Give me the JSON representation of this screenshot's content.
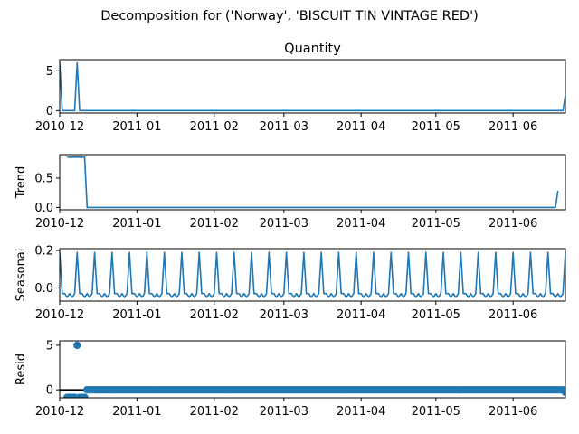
{
  "chart_data": {
    "type": "line",
    "suptitle": "Decomposition for ('Norway', 'BISCUIT TIN VINTAGE RED')",
    "x_tick_labels": [
      "2010-12",
      "2011-01",
      "2011-02",
      "2011-03",
      "2011-04",
      "2011-05",
      "2011-06"
    ],
    "x_tick_days": [
      0,
      31,
      62,
      90,
      121,
      151,
      182
    ],
    "x_range_days": [
      0,
      203
    ],
    "colors": {
      "series": "#1f77b4",
      "axis": "#000000",
      "zero_line": "#000000"
    },
    "panels": [
      {
        "key": "quantity",
        "title": "Quantity",
        "ylabel": "",
        "kind": "line",
        "ylim": [
          -0.3,
          6.4
        ],
        "yticks": [
          0,
          5
        ],
        "ytick_labels": [
          "0",
          "5"
        ],
        "points": [
          [
            0,
            6
          ],
          [
            1,
            0
          ],
          [
            6,
            0
          ],
          [
            7,
            6
          ],
          [
            8,
            0
          ],
          [
            202,
            0
          ],
          [
            203,
            2
          ]
        ]
      },
      {
        "key": "trend",
        "title": "",
        "ylabel": "Trend",
        "kind": "line",
        "ylim": [
          -0.04,
          0.9
        ],
        "yticks": [
          0.0,
          0.5
        ],
        "ytick_labels": [
          "0.0",
          "0.5"
        ],
        "points": [
          [
            3,
            0.857
          ],
          [
            10,
            0.857
          ],
          [
            11,
            0
          ],
          [
            199,
            0
          ],
          [
            200,
            0.286
          ]
        ]
      },
      {
        "key": "seasonal",
        "title": "",
        "ylabel": "Seasonal",
        "kind": "periodic",
        "ylim": [
          -0.07,
          0.21
        ],
        "yticks": [
          0.0,
          0.2
        ],
        "ytick_labels": [
          "0.0",
          "0.2"
        ],
        "period": 7,
        "phase": 0,
        "pattern": [
          0.19,
          -0.03,
          -0.03,
          -0.05,
          -0.03,
          -0.05,
          -0.03
        ]
      },
      {
        "key": "resid",
        "title": "",
        "ylabel": "Resid",
        "kind": "scatter",
        "ylim": [
          -0.9,
          5.5
        ],
        "yticks": [
          0,
          5
        ],
        "ytick_labels": [
          "0",
          "5"
        ],
        "zero_line": true,
        "points_special": [
          [
            3,
            -0.857
          ],
          [
            4,
            -0.857
          ],
          [
            5,
            -0.857
          ],
          [
            6,
            -0.857
          ],
          [
            7,
            5.0
          ],
          [
            8,
            -0.857
          ],
          [
            9,
            -0.857
          ],
          [
            10,
            -0.857
          ]
        ],
        "range_start": 11,
        "range_end": 203,
        "default_value": 0.0,
        "range_overrides": [
          [
            203,
            -0.29
          ]
        ]
      }
    ]
  }
}
